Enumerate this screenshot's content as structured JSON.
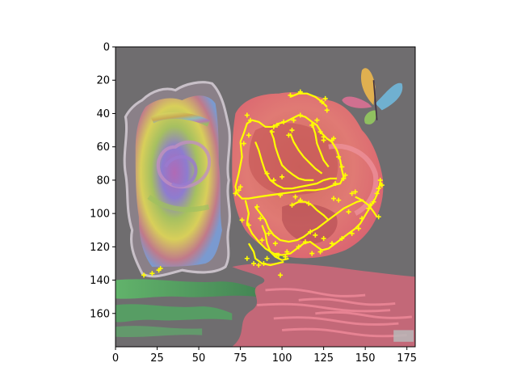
{
  "chart_data": {
    "type": "image",
    "title": "",
    "xlabel": "",
    "ylabel": "",
    "xlim": [
      0,
      180
    ],
    "ylim": [
      180,
      0
    ],
    "y_inverted": true,
    "x_ticks": [
      0,
      25,
      50,
      75,
      100,
      125,
      150,
      175
    ],
    "y_ticks": [
      0,
      20,
      40,
      60,
      80,
      100,
      120,
      140,
      160
    ],
    "grid": false,
    "legend": "none",
    "image_content": {
      "left_subject": "rainbow-rose-in-ornate-frame",
      "right_subject": "pink-rose",
      "corner_icon": "butterfly-icon",
      "reflection": "water-reflection",
      "watermark": "Plab"
    },
    "overlay": {
      "type": "scatter",
      "color": "#ffff00",
      "marker": "plus",
      "points": [
        [
          17,
          137
        ],
        [
          22,
          136
        ],
        [
          26,
          134
        ],
        [
          27,
          133
        ],
        [
          72,
          88
        ],
        [
          74,
          86
        ],
        [
          75,
          84
        ],
        [
          79,
          127
        ],
        [
          83,
          130
        ],
        [
          86,
          131
        ],
        [
          89,
          130
        ],
        [
          91,
          127
        ],
        [
          97,
          125
        ],
        [
          98,
          125
        ],
        [
          102,
          126
        ],
        [
          103,
          123
        ],
        [
          99,
          137
        ],
        [
          76,
          104
        ],
        [
          80,
          107
        ],
        [
          77,
          58
        ],
        [
          80,
          53
        ],
        [
          79,
          41
        ],
        [
          81,
          44
        ],
        [
          94,
          51
        ],
        [
          95,
          48
        ],
        [
          97,
          47
        ],
        [
          101,
          45
        ],
        [
          104,
          53
        ],
        [
          106,
          50
        ],
        [
          107,
          44
        ],
        [
          111,
          41
        ],
        [
          118,
          47
        ],
        [
          121,
          44
        ],
        [
          123,
          51
        ],
        [
          125,
          56
        ],
        [
          125,
          54
        ],
        [
          130,
          56
        ],
        [
          131,
          55
        ],
        [
          134,
          66
        ],
        [
          136,
          72
        ],
        [
          132,
          82
        ],
        [
          137,
          79
        ],
        [
          138,
          77
        ],
        [
          105,
          29
        ],
        [
          111,
          27
        ],
        [
          124,
          33
        ],
        [
          126,
          31
        ],
        [
          127,
          38
        ],
        [
          118,
          124
        ],
        [
          123,
          123
        ],
        [
          130,
          118
        ],
        [
          136,
          115
        ],
        [
          142,
          112
        ],
        [
          146,
          109
        ],
        [
          148,
          103
        ],
        [
          153,
          95
        ],
        [
          157,
          88
        ],
        [
          158,
          85
        ],
        [
          159,
          80
        ],
        [
          160,
          83
        ],
        [
          155,
          93
        ],
        [
          158,
          102
        ],
        [
          144,
          87
        ],
        [
          142,
          88
        ],
        [
          152,
          97
        ],
        [
          140,
          99
        ],
        [
          106,
          95
        ],
        [
          111,
          92
        ],
        [
          116,
          94
        ],
        [
          131,
          91
        ],
        [
          134,
          92
        ],
        [
          117,
          111
        ],
        [
          120,
          113
        ],
        [
          125,
          115
        ],
        [
          114,
          117
        ],
        [
          110,
          120
        ],
        [
          91,
          76
        ],
        [
          95,
          80
        ],
        [
          100,
          78
        ],
        [
          108,
          90
        ],
        [
          99,
          89
        ],
        [
          85,
          96
        ],
        [
          87,
          103
        ],
        [
          92,
          112
        ],
        [
          96,
          118
        ],
        [
          88,
          116
        ]
      ],
      "contours": [
        [
          [
            75,
            57
          ],
          [
            77,
            52
          ],
          [
            79,
            46
          ],
          [
            82,
            44
          ],
          [
            86,
            45
          ],
          [
            90,
            48
          ],
          [
            94,
            48
          ],
          [
            98,
            46
          ],
          [
            102,
            45
          ],
          [
            106,
            43
          ],
          [
            110,
            41
          ],
          [
            114,
            42
          ],
          [
            118,
            45
          ],
          [
            121,
            47
          ],
          [
            124,
            52
          ],
          [
            127,
            55
          ],
          [
            130,
            57
          ],
          [
            133,
            62
          ],
          [
            135,
            68
          ],
          [
            136,
            74
          ],
          [
            137,
            78
          ],
          [
            135,
            82
          ],
          [
            131,
            83
          ],
          [
            126,
            85
          ],
          [
            120,
            86
          ],
          [
            114,
            86
          ],
          [
            108,
            87
          ],
          [
            100,
            88
          ],
          [
            93,
            89
          ],
          [
            86,
            90
          ],
          [
            80,
            91
          ],
          [
            76,
            91
          ],
          [
            73,
            88
          ],
          [
            72,
            84
          ],
          [
            74,
            76
          ],
          [
            76,
            66
          ],
          [
            75,
            57
          ]
        ],
        [
          [
            78,
            92
          ],
          [
            80,
            100
          ],
          [
            79,
            106
          ],
          [
            82,
            112
          ],
          [
            86,
            117
          ],
          [
            90,
            121
          ],
          [
            95,
            124
          ],
          [
            100,
            125
          ],
          [
            105,
            124
          ],
          [
            109,
            121
          ],
          [
            113,
            118
          ],
          [
            117,
            117
          ],
          [
            121,
            120
          ],
          [
            124,
            122
          ],
          [
            128,
            121
          ],
          [
            132,
            118
          ],
          [
            136,
            115
          ],
          [
            140,
            112
          ],
          [
            144,
            109
          ],
          [
            147,
            106
          ],
          [
            150,
            101
          ],
          [
            153,
            96
          ],
          [
            156,
            91
          ],
          [
            158,
            86
          ],
          [
            159,
            81
          ],
          [
            160,
            84
          ]
        ],
        [
          [
            84,
            57
          ],
          [
            86,
            62
          ],
          [
            88,
            69
          ],
          [
            90,
            75
          ],
          [
            93,
            80
          ],
          [
            97,
            83
          ],
          [
            101,
            85
          ],
          [
            106,
            85
          ],
          [
            111,
            84
          ],
          [
            116,
            83
          ],
          [
            121,
            82
          ],
          [
            125,
            80
          ],
          [
            129,
            79
          ],
          [
            133,
            79
          ]
        ],
        [
          [
            93,
            50
          ],
          [
            95,
            55
          ],
          [
            96,
            60
          ],
          [
            98,
            66
          ],
          [
            100,
            71
          ],
          [
            103,
            74
          ],
          [
            107,
            77
          ],
          [
            110,
            79
          ],
          [
            114,
            80
          ],
          [
            119,
            80
          ]
        ],
        [
          [
            105,
            52
          ],
          [
            107,
            57
          ],
          [
            110,
            62
          ],
          [
            113,
            66
          ],
          [
            117,
            70
          ],
          [
            120,
            73
          ],
          [
            124,
            76
          ]
        ],
        [
          [
            118,
            46
          ],
          [
            120,
            52
          ],
          [
            121,
            58
          ],
          [
            123,
            63
          ],
          [
            125,
            68
          ],
          [
            128,
            72
          ]
        ],
        [
          [
            84,
            96
          ],
          [
            87,
            100
          ],
          [
            90,
            104
          ],
          [
            92,
            109
          ],
          [
            95,
            113
          ],
          [
            99,
            116
          ],
          [
            104,
            117
          ],
          [
            109,
            116
          ],
          [
            113,
            114
          ],
          [
            117,
            111
          ],
          [
            121,
            109
          ],
          [
            125,
            106
          ],
          [
            129,
            103
          ],
          [
            133,
            100
          ],
          [
            137,
            97
          ],
          [
            141,
            95
          ],
          [
            145,
            93
          ],
          [
            149,
            92
          ]
        ],
        [
          [
            88,
            107
          ],
          [
            90,
            112
          ],
          [
            91,
            118
          ],
          [
            93,
            123
          ],
          [
            96,
            126
          ],
          [
            100,
            128
          ],
          [
            104,
            127
          ]
        ],
        [
          [
            106,
            95
          ],
          [
            110,
            93
          ],
          [
            114,
            93
          ],
          [
            118,
            95
          ],
          [
            121,
            98
          ],
          [
            125,
            101
          ],
          [
            128,
            104
          ]
        ],
        [
          [
            80,
            118
          ],
          [
            83,
            123
          ],
          [
            84,
            127
          ],
          [
            88,
            130
          ],
          [
            93,
            131
          ],
          [
            97,
            130
          ],
          [
            101,
            129
          ]
        ],
        [
          [
            144,
            90
          ],
          [
            148,
            92
          ],
          [
            152,
            95
          ],
          [
            155,
            99
          ],
          [
            157,
            102
          ]
        ],
        [
          [
            105,
            30
          ],
          [
            110,
            28
          ],
          [
            115,
            28
          ],
          [
            120,
            30
          ],
          [
            124,
            33
          ],
          [
            127,
            36
          ]
        ]
      ]
    }
  }
}
